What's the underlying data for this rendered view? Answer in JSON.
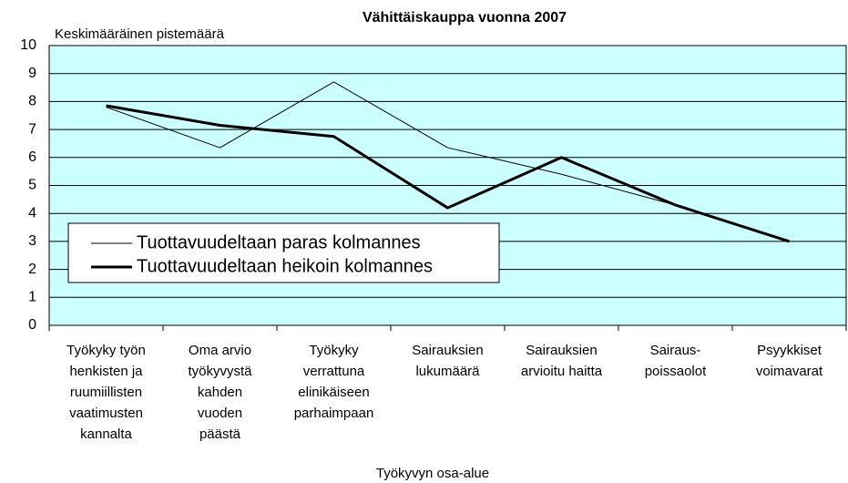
{
  "chart_data": {
    "type": "line",
    "title": "Vähittäiskauppa vuonna 2007",
    "y_label": "Keskimääräinen pistemäärä",
    "x_label": "Työkyvyn osa-alue",
    "categories": [
      "Työkyky työn\nhenkisten ja\nruumiillisten\nvaatimusten\nkannalta",
      "Oma arvio\ntyökyvystä\nkahden\nvuoden\npäästä",
      "Työkyky\nverrattuna\nelinikäiseen\nparhaimpaan",
      "Sairauksien\nlukumäärä",
      "Sairauksien\narvioitu haitta",
      "Sairaus-\npoissaolot",
      "Psyykkiset\nvoimavarat"
    ],
    "series": [
      {
        "name": "Tuottavuudeltaan paras kolmannes",
        "color": "#000000",
        "values": [
          7.8,
          6.35,
          8.7,
          6.35,
          5.4,
          4.3,
          3.0
        ]
      },
      {
        "name": "Tuottavuudeltaan heikoin kolmannes",
        "color": "#000000",
        "values": [
          7.85,
          7.15,
          6.75,
          4.2,
          6.0,
          4.3,
          3.0
        ]
      }
    ],
    "ylim": [
      0,
      10
    ],
    "yticks": [
      0,
      1,
      2,
      3,
      4,
      5,
      6,
      7,
      8,
      9,
      10
    ],
    "grid": true,
    "background": "#ccffff",
    "legend": "lower left"
  }
}
